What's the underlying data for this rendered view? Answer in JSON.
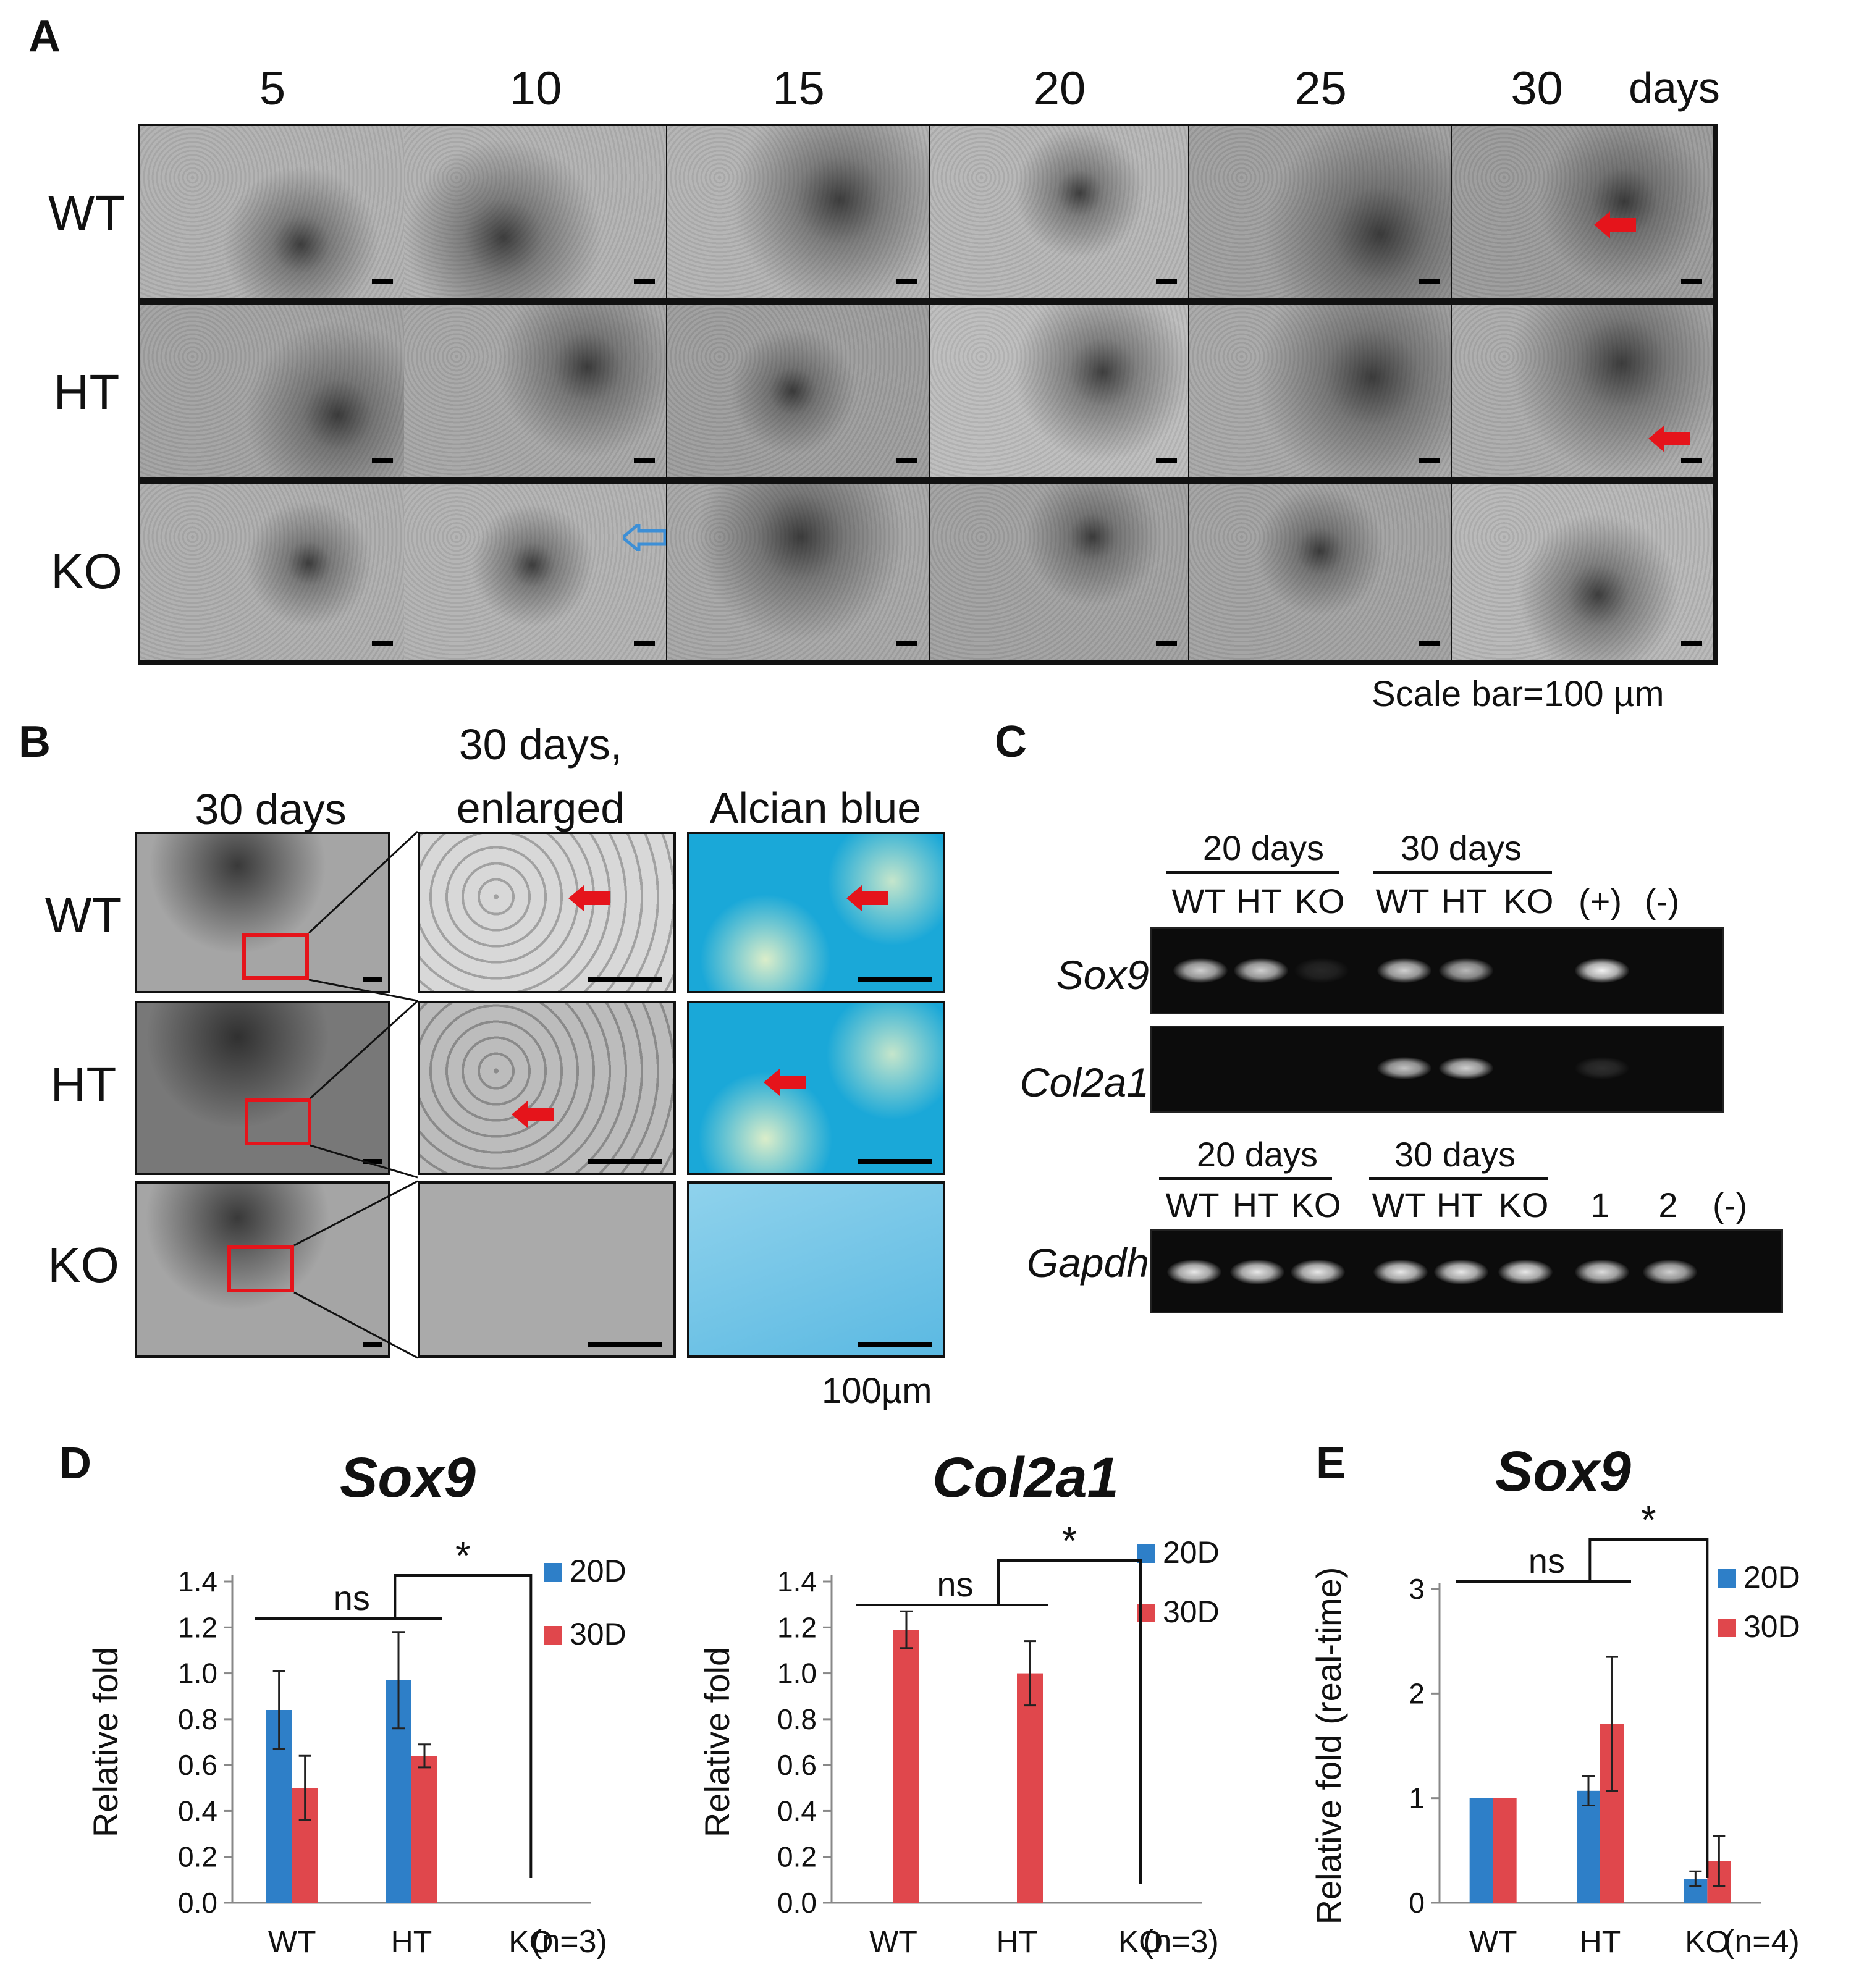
{
  "panelA": {
    "letter": "A",
    "timepoints": [
      "5",
      "10",
      "15",
      "20",
      "25",
      "30"
    ],
    "days_label": "days",
    "rows": [
      "WT",
      "HT",
      "KO"
    ],
    "scale_note": "Scale bar=100 µm"
  },
  "panelB": {
    "letter": "B",
    "col_headers": [
      "30 days",
      "30 days,",
      "enlarged",
      "Alcian blue"
    ],
    "rows": [
      "WT",
      "HT",
      "KO"
    ],
    "scale_note": "100µm"
  },
  "panelC": {
    "letter": "C",
    "group1": "20 days",
    "group2": "30 days",
    "lanes_top": [
      "WT",
      "HT",
      "KO",
      "WT",
      "HT",
      "KO",
      "(+)",
      "(-)"
    ],
    "lanes_bottom": [
      "WT",
      "HT",
      "KO",
      "WT",
      "HT",
      "KO",
      "1",
      "2",
      "(-)"
    ],
    "genes": [
      "Sox9",
      "Col2a1",
      "Gapdh"
    ]
  },
  "panelD": {
    "letter": "D"
  },
  "panelE": {
    "letter": "E"
  },
  "colors": {
    "series_20D": "#2e7fc8",
    "series_30D": "#e0474c",
    "arrow_red": "#e5141b",
    "arrow_blue": "#3d8fd6",
    "alcian": "#1aa8d8"
  },
  "chart_data": [
    {
      "type": "bar",
      "title": "Sox9",
      "ylabel": "Relative fold",
      "categories": [
        "WT",
        "HT",
        "KO"
      ],
      "series": [
        {
          "name": "20D",
          "values": [
            0.84,
            0.97,
            0
          ],
          "errors": [
            0.17,
            0.21,
            0
          ]
        },
        {
          "name": "30D",
          "values": [
            0.5,
            0.64,
            0
          ],
          "errors": [
            0.14,
            0.05,
            0
          ]
        }
      ],
      "ylim": [
        0,
        1.4
      ],
      "yticks": [
        "0.0",
        "0.2",
        "0.4",
        "0.6",
        "0.8",
        "1.0",
        "1.2",
        "1.4"
      ],
      "annotations": [
        "ns",
        "*"
      ],
      "n_label": "(n=3)"
    },
    {
      "type": "bar",
      "title": "Col2a1",
      "ylabel": "Relative fold",
      "categories": [
        "WT",
        "HT",
        "KO"
      ],
      "series": [
        {
          "name": "20D",
          "values": [
            0,
            0,
            0
          ],
          "errors": [
            0,
            0,
            0
          ]
        },
        {
          "name": "30D",
          "values": [
            1.19,
            1.0,
            0
          ],
          "errors": [
            0.08,
            0.14,
            0
          ]
        }
      ],
      "ylim": [
        0,
        1.4
      ],
      "yticks": [
        "0.0",
        "0.2",
        "0.4",
        "0.6",
        "0.8",
        "1.0",
        "1.2",
        "1.4"
      ],
      "annotations": [
        "ns",
        "*"
      ],
      "n_label": "(n=3)"
    },
    {
      "type": "bar",
      "title": "Sox9",
      "ylabel": "Relative fold (real-time)",
      "categories": [
        "WT",
        "HT",
        "KO"
      ],
      "series": [
        {
          "name": "20D",
          "values": [
            1.0,
            1.07,
            0.23
          ],
          "errors": [
            0,
            0.14,
            0.07
          ]
        },
        {
          "name": "30D",
          "values": [
            1.0,
            1.71,
            0.4
          ],
          "errors": [
            0,
            0.64,
            0.24
          ]
        }
      ],
      "ylim": [
        0,
        3
      ],
      "yticks": [
        "0",
        "1",
        "2",
        "3"
      ],
      "annotations": [
        "ns",
        "*"
      ],
      "n_label": "(n=4)"
    }
  ]
}
